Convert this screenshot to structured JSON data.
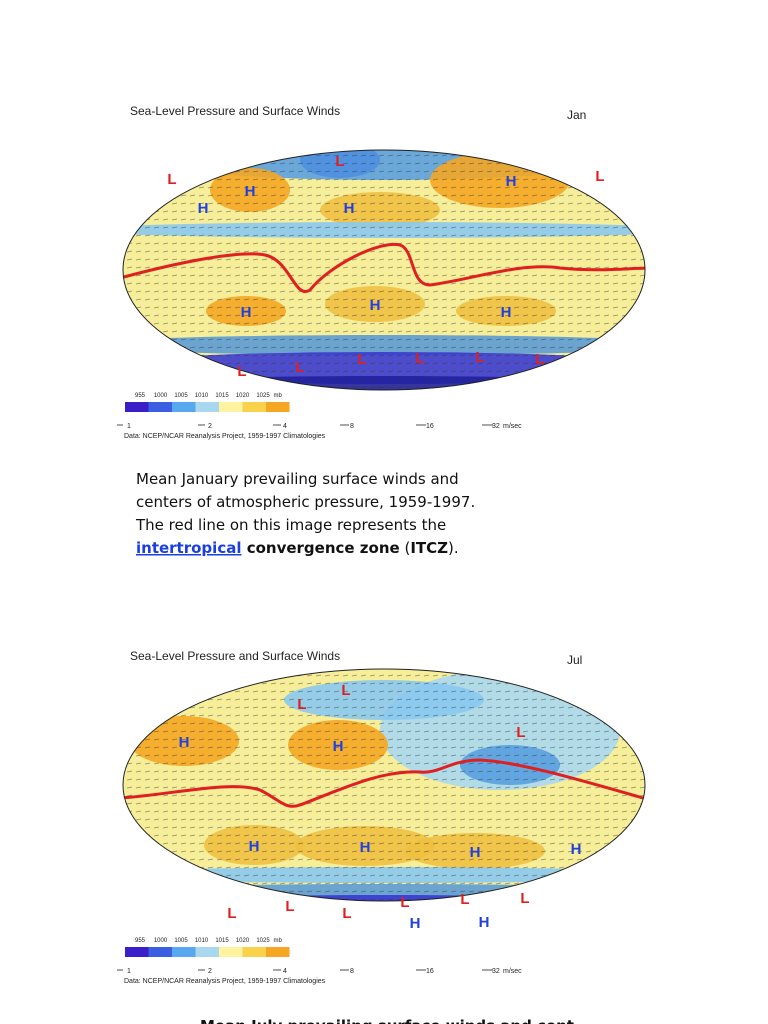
{
  "maps": [
    {
      "title": "Sea-Level Pressure and Surface Winds",
      "month": "Jan",
      "pressure_labels": [
        "955",
        "1000",
        "1005",
        "1010",
        "1015",
        "1020",
        "1025"
      ],
      "pressure_unit": "mb",
      "speeds": [
        "1",
        "2",
        "4",
        "8",
        "16",
        "32"
      ],
      "speed_unit": "m/sec",
      "source": "Data: NCEP/NCAR Reanalysis Project, 1959-1997 Climatologies",
      "centers": [
        "L",
        "L",
        "L",
        "H",
        "H",
        "H",
        "H",
        "H",
        "H",
        "H",
        "L",
        "L",
        "L",
        "L",
        "L",
        "L"
      ]
    },
    {
      "title": "Sea-Level Pressure and Surface Winds",
      "month": "Jul",
      "pressure_labels": [
        "955",
        "1000",
        "1005",
        "1010",
        "1015",
        "1020",
        "1025"
      ],
      "pressure_unit": "mb",
      "speeds": [
        "1",
        "2",
        "4",
        "8",
        "16",
        "32"
      ],
      "speed_unit": "m/sec",
      "source": "Data: NCEP/NCAR Reanalysis Project, 1959-1997 Climatologies",
      "centers": [
        "L",
        "L",
        "L",
        "H",
        "H",
        "H",
        "H",
        "H",
        "H",
        "L",
        "L",
        "L",
        "L",
        "L",
        "L",
        "H",
        "H"
      ]
    }
  ],
  "caption": {
    "lines": [
      "Mean January prevailing surface winds and",
      "centers of atmospheric pressure, 1959-1997.",
      "The red line on this image represents the"
    ],
    "last_line": [
      {
        "text": "intertropical",
        "style": "link"
      },
      {
        "text": " convergence zone",
        "style": "bold"
      },
      {
        "text": " (",
        "style": "plain"
      },
      {
        "text": "ITCZ",
        "style": "bold"
      },
      {
        "text": ").",
        "style": "plain"
      }
    ]
  },
  "footer": "Mean July prevailing surface winds and cent"
}
